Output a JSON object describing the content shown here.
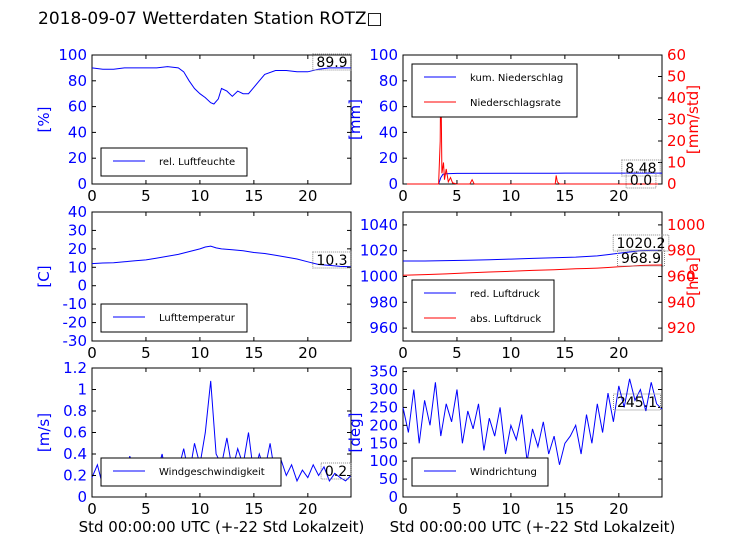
{
  "title": "2018-09-07 Wetterdaten Station ROTZ□",
  "colors": {
    "primary": "#0000ff",
    "secondary": "#ff0000",
    "axis": "#000000",
    "fill": "#ffffff"
  },
  "chart_data": [
    {
      "id": "humidity",
      "type": "line",
      "ylabel": "[%]",
      "xlabel": "",
      "xlim": [
        0,
        24
      ],
      "ylim": [
        0,
        100
      ],
      "xticks": [
        0,
        5,
        10,
        15,
        20
      ],
      "yticks": [
        0,
        20,
        40,
        60,
        80,
        100
      ],
      "value_label": "89.9",
      "legend_position": "lower-left",
      "series": [
        {
          "name": "rel. Luftfeuchte",
          "color": "#0000ff",
          "x": [
            0,
            1,
            2,
            3,
            4,
            5,
            6,
            7,
            8,
            8.5,
            9,
            9.5,
            10,
            10.5,
            11,
            11.3,
            11.7,
            12,
            12.5,
            13,
            13.5,
            14,
            14.5,
            15,
            15.5,
            16,
            17,
            18,
            19,
            20,
            21,
            22,
            23,
            24
          ],
          "y": [
            90,
            89,
            89,
            90,
            90,
            90,
            90,
            91,
            90,
            87,
            80,
            74,
            70,
            67,
            63,
            62,
            66,
            74,
            72,
            68,
            72,
            70,
            70,
            75,
            80,
            85,
            88,
            88,
            87,
            87,
            89,
            90,
            90,
            90
          ]
        }
      ]
    },
    {
      "id": "precipitation",
      "type": "line",
      "ylabel": "[mm]",
      "y2label": "[mm/std]",
      "xlabel": "",
      "xlim": [
        0,
        24
      ],
      "ylim": [
        0,
        100
      ],
      "y2lim": [
        0,
        60
      ],
      "xticks": [
        0,
        5,
        10,
        15,
        20
      ],
      "yticks": [
        0,
        20,
        40,
        60,
        80,
        100
      ],
      "y2ticks": [
        0,
        10,
        20,
        30,
        40,
        50,
        60
      ],
      "value_labels": [
        "8.48",
        "0.0"
      ],
      "legend_position": "upper-left",
      "series": [
        {
          "name": "kum. Niederschlag",
          "color": "#0000ff",
          "axis": "left",
          "x": [
            0,
            3.3,
            3.5,
            3.7,
            4,
            5,
            10,
            14,
            15,
            20,
            24
          ],
          "y": [
            0,
            0,
            5,
            7.5,
            8,
            8.2,
            8.3,
            8.4,
            8.45,
            8.48,
            8.48
          ]
        },
        {
          "name": "Niederschlagsrate",
          "color": "#ff0000",
          "axis": "right",
          "x": [
            0,
            3.3,
            3.45,
            3.5,
            3.6,
            3.75,
            3.85,
            4.0,
            4.2,
            4.4,
            4.6,
            5,
            6.2,
            6.4,
            6.6,
            8,
            14.1,
            14.2,
            14.3,
            14.5,
            24
          ],
          "y": [
            0,
            0,
            20,
            55,
            5,
            10,
            2,
            7,
            1,
            3,
            0.5,
            0,
            0,
            2,
            0,
            0,
            0,
            4,
            1,
            0,
            0
          ]
        }
      ]
    },
    {
      "id": "temperature",
      "type": "line",
      "ylabel": "[C]",
      "xlabel": "",
      "xlim": [
        0,
        24
      ],
      "ylim": [
        -30,
        40
      ],
      "xticks": [
        0,
        5,
        10,
        15,
        20
      ],
      "yticks": [
        -30,
        -20,
        -10,
        0,
        10,
        20,
        30,
        40
      ],
      "value_label": "10.3",
      "legend_position": "lower-left",
      "series": [
        {
          "name": "Lufttemperatur",
          "color": "#0000ff",
          "x": [
            0,
            1,
            2,
            3,
            4,
            5,
            6,
            7,
            8,
            9,
            10,
            10.5,
            11,
            11.5,
            12,
            13,
            14,
            15,
            16,
            17,
            18,
            19,
            20,
            21,
            22,
            23,
            24
          ],
          "y": [
            12,
            12.3,
            12.5,
            13,
            13.5,
            14,
            15,
            16,
            17,
            18.5,
            20,
            21,
            21.5,
            20.5,
            20,
            19.5,
            19,
            18,
            17.5,
            16.5,
            15.5,
            14.5,
            13,
            11.5,
            11,
            10.5,
            10.3
          ]
        }
      ]
    },
    {
      "id": "pressure",
      "type": "line",
      "ylabel": "",
      "y2label": "[hPa]",
      "xlabel": "",
      "xlim": [
        0,
        24
      ],
      "ylim": [
        950,
        1050
      ],
      "y2lim": [
        910,
        1010
      ],
      "xticks": [
        0,
        5,
        10,
        15,
        20
      ],
      "yticks": [
        960,
        980,
        1000,
        1020,
        1040
      ],
      "y2ticks": [
        920,
        940,
        960,
        980,
        1000
      ],
      "value_labels": [
        "1020.2",
        "968.9"
      ],
      "legend_position": "lower-left",
      "series": [
        {
          "name": "red. Luftdruck",
          "color": "#0000ff",
          "axis": "left",
          "x": [
            0,
            2,
            4,
            6,
            8,
            10,
            12,
            14,
            16,
            17,
            18,
            19,
            20,
            21,
            22,
            23,
            24
          ],
          "y": [
            1012,
            1012,
            1012.3,
            1012.6,
            1013,
            1013.5,
            1014,
            1014.5,
            1015,
            1015.5,
            1016,
            1017,
            1018,
            1019,
            1020,
            1020.2,
            1020.2
          ]
        },
        {
          "name": "abs. Luftdruck",
          "color": "#ff0000",
          "axis": "right",
          "x": [
            0,
            2,
            4,
            6,
            8,
            10,
            12,
            14,
            16,
            17,
            18,
            19,
            20,
            21,
            22,
            23,
            24
          ],
          "y": [
            961,
            961.5,
            962,
            962.8,
            963.5,
            964,
            964.7,
            965.3,
            966,
            966.2,
            966.5,
            967,
            967.5,
            968,
            968.5,
            968.8,
            968.9
          ]
        }
      ]
    },
    {
      "id": "wind-speed",
      "type": "line",
      "ylabel": "[m/s]",
      "xlabel": "Std 00:00:00 UTC (+-22 Std Lokalzeit)",
      "xlim": [
        0,
        24
      ],
      "ylim": [
        0,
        1.2
      ],
      "xticks": [
        0,
        5,
        10,
        15,
        20
      ],
      "yticks": [
        0,
        0.2,
        0.4,
        0.6,
        0.8,
        1.0,
        1.2
      ],
      "value_label": "0.2",
      "legend_position": "lower-center",
      "series": [
        {
          "name": "Windgeschwindigkeit",
          "color": "#0000ff",
          "x": [
            0,
            0.5,
            1,
            1.5,
            2,
            2.5,
            3,
            3.5,
            4,
            4.5,
            5,
            5.5,
            6,
            6.5,
            7,
            7.5,
            8,
            8.5,
            9,
            9.5,
            10,
            10.5,
            11,
            11.5,
            12,
            12.5,
            13,
            13.5,
            14,
            14.5,
            15,
            15.5,
            16,
            16.5,
            17,
            17.5,
            18,
            18.5,
            19,
            19.5,
            20,
            20.5,
            21,
            21.5,
            22,
            22.5,
            23,
            23.5,
            24
          ],
          "y": [
            0.18,
            0.3,
            0.1,
            0.32,
            0.15,
            0.25,
            0.1,
            0.38,
            0.2,
            0.3,
            0.12,
            0.35,
            0.22,
            0.4,
            0.15,
            0.33,
            0.25,
            0.45,
            0.2,
            0.5,
            0.3,
            0.6,
            1.08,
            0.4,
            0.3,
            0.55,
            0.25,
            0.45,
            0.3,
            0.6,
            0.2,
            0.4,
            0.25,
            0.5,
            0.18,
            0.35,
            0.2,
            0.3,
            0.15,
            0.25,
            0.18,
            0.3,
            0.2,
            0.28,
            0.15,
            0.22,
            0.18,
            0.15,
            0.2
          ]
        }
      ]
    },
    {
      "id": "wind-direction",
      "type": "line",
      "ylabel": "[deg]",
      "xlabel": "Std 00:00:00 UTC (+-22 Std Lokalzeit)",
      "xlim": [
        0,
        24
      ],
      "ylim": [
        0,
        360
      ],
      "xticks": [
        0,
        5,
        10,
        15,
        20
      ],
      "yticks": [
        0,
        50,
        100,
        150,
        200,
        250,
        300,
        350
      ],
      "value_label": "245.1",
      "legend_position": "lower-left",
      "series": [
        {
          "name": "Windrichtung",
          "color": "#0000ff",
          "x": [
            0,
            0.5,
            1,
            1.5,
            2,
            2.5,
            3,
            3.5,
            4,
            4.5,
            5,
            5.5,
            6,
            6.5,
            7,
            7.5,
            8,
            8.5,
            9,
            9.5,
            10,
            10.5,
            11,
            11.5,
            12,
            12.5,
            13,
            13.5,
            14,
            14.5,
            15,
            15.5,
            16,
            16.5,
            17,
            17.5,
            18,
            18.5,
            19,
            19.5,
            20,
            20.5,
            21,
            21.5,
            22,
            22.5,
            23,
            23.5,
            24
          ],
          "y": [
            250,
            180,
            300,
            150,
            270,
            200,
            320,
            170,
            260,
            210,
            300,
            150,
            240,
            190,
            260,
            130,
            220,
            170,
            250,
            120,
            200,
            160,
            230,
            100,
            190,
            140,
            210,
            120,
            170,
            90,
            150,
            170,
            200,
            120,
            230,
            150,
            260,
            180,
            290,
            210,
            310,
            250,
            330,
            270,
            300,
            240,
            320,
            260,
            245
          ]
        }
      ]
    }
  ]
}
